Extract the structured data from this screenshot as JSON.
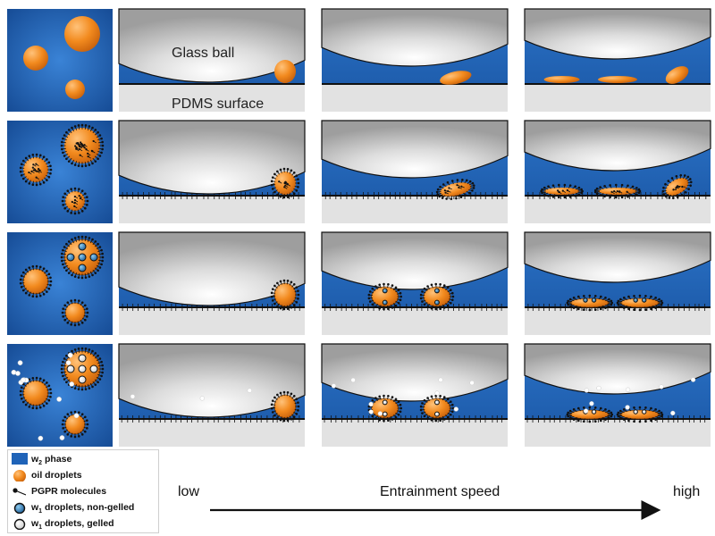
{
  "labels": {
    "glass_ball": "Glass ball",
    "pdms_surface": "PDMS surface"
  },
  "legend": [
    {
      "id": "w2",
      "prefix": "w",
      "sub": "2",
      "text": " phase"
    },
    {
      "id": "oil",
      "prefix": "",
      "sub": "",
      "text": "oil droplets"
    },
    {
      "id": "pgpr",
      "prefix": "",
      "sub": "",
      "text": "PGPR molecules"
    },
    {
      "id": "w1ng",
      "prefix": "w",
      "sub": "1",
      "text": " droplets, non-gelled"
    },
    {
      "id": "w1g",
      "prefix": "w",
      "sub": "1",
      "text": " droplets, gelled"
    }
  ],
  "speed_axis": {
    "low": "low",
    "title": "Entrainment speed",
    "high": "high"
  },
  "colors": {
    "w2_phase": "#1f63b8",
    "oil": "#f28a1e",
    "pgpr": "#111111",
    "w1_nongelled": "#2a7fb0",
    "w1_gelled": "#ffffff",
    "glass": "#c9c9c9",
    "pdms": "#e2e2e2"
  }
}
